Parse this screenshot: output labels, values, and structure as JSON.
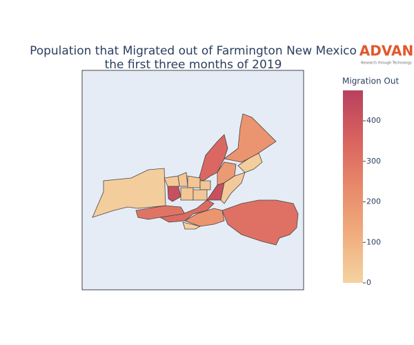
{
  "chart_data": {
    "type": "choropleth",
    "title": "Population that Migrated out of Farmington New Mexico",
    "subtitle": "the first three months of 2019",
    "logo": "ADVAN",
    "logo_tagline": "Research through Technology",
    "colorbar_title": "Migration Out",
    "zlim": [
      0,
      475
    ],
    "zticks": [
      0,
      100,
      200,
      300,
      400
    ],
    "colors": [
      "#f5d3a2",
      "#f0ad7e",
      "#e8896a",
      "#d8625f",
      "#b8405e"
    ],
    "values": [
      20,
      420,
      300,
      330,
      310,
      200,
      20,
      200,
      340,
      420,
      180,
      20,
      30,
      40,
      40,
      40,
      40,
      40,
      30
    ]
  }
}
